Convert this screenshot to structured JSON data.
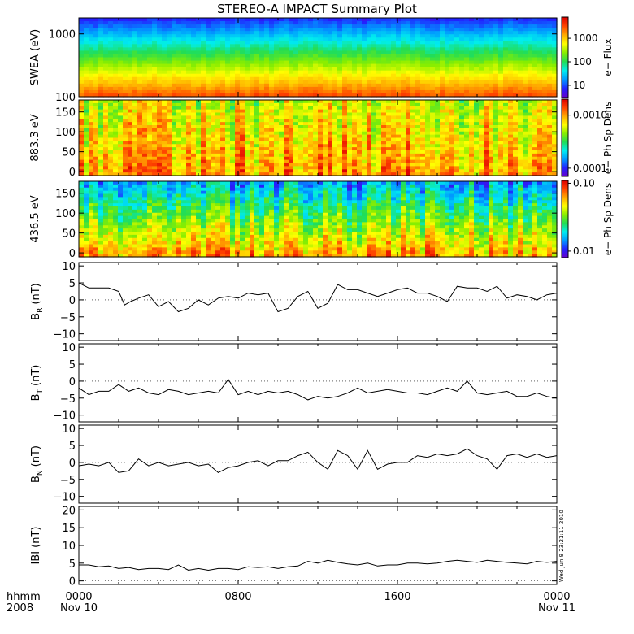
{
  "title": "STEREO-A IMPACT Summary Plot",
  "stamp": "Wed Jun  9 23:21:11 2010",
  "x_axis": {
    "label_line1": "hhmm",
    "label_line2": "2008",
    "range_hours": [
      0,
      24
    ],
    "ticks": [
      {
        "hour": 0,
        "line1": "0000",
        "line2": "Nov 10"
      },
      {
        "hour": 8,
        "line1": "0800",
        "line2": ""
      },
      {
        "hour": 16,
        "line1": "1600",
        "line2": ""
      },
      {
        "hour": 24,
        "line1": "0000",
        "line2": "Nov 11"
      }
    ]
  },
  "colors": {
    "colorbar": [
      "#6600cc",
      "#2222ff",
      "#0099ff",
      "#00eeee",
      "#22dd55",
      "#88ee00",
      "#ffff00",
      "#ffaa00",
      "#ff4400",
      "#dd0000"
    ],
    "line": "#000000"
  },
  "chart_data": [
    {
      "type": "heatmap",
      "ylabel": "SWEA (eV)",
      "yscale": "log",
      "ylim": [
        100,
        1800
      ],
      "yticks": [
        "100",
        "1000"
      ],
      "ytick_values": [
        100,
        1000
      ],
      "colorbar": {
        "label": "e− Flux",
        "scale": "log",
        "ticks": [
          "10",
          "100",
          "1000"
        ],
        "tick_values": [
          10,
          100,
          1000
        ],
        "range": [
          3,
          8000
        ]
      }
    },
    {
      "type": "heatmap",
      "ylabel": "883.3 eV",
      "ylim": [
        -10,
        180
      ],
      "yticks": [
        "0",
        "50",
        "100",
        "150"
      ],
      "ytick_values": [
        0,
        50,
        100,
        150
      ],
      "colorbar": {
        "label": "e− Ph Sp Dens",
        "scale": "log",
        "ticks": [
          "0.0001",
          "0.0010"
        ],
        "tick_values": [
          0.0001,
          0.001
        ],
        "range": [
          7e-05,
          0.002
        ]
      }
    },
    {
      "type": "heatmap",
      "ylabel": "436.5 eV",
      "ylim": [
        -10,
        180
      ],
      "yticks": [
        "0",
        "50",
        "100",
        "150"
      ],
      "ytick_values": [
        0,
        50,
        100,
        150
      ],
      "colorbar": {
        "label": "e− Ph Sp Dens",
        "scale": "log",
        "ticks": [
          "0.01",
          "0.10"
        ],
        "tick_values": [
          0.01,
          0.1
        ],
        "range": [
          0.008,
          0.11
        ]
      }
    },
    {
      "type": "line",
      "ylabel": "B",
      "ylabel_sub": "R",
      "ylabel_unit": "(nT)",
      "ylim": [
        -12,
        11
      ],
      "yticks": [
        "−10",
        "−5",
        "0",
        "5",
        "10"
      ],
      "ytick_values": [
        -10,
        -5,
        0,
        5,
        10
      ],
      "x": [
        0,
        0.5,
        1,
        1.5,
        2,
        2.3,
        2.6,
        3,
        3.5,
        4,
        4.5,
        5,
        5.5,
        6,
        6.5,
        7,
        7.5,
        8,
        8.5,
        9,
        9.5,
        10,
        10.5,
        11,
        11.5,
        12,
        12.5,
        13,
        13.5,
        14,
        14.5,
        15,
        15.5,
        16,
        16.5,
        17,
        17.5,
        18,
        18.5,
        19,
        19.5,
        20,
        20.5,
        21,
        21.5,
        22,
        22.5,
        23,
        23.5,
        24
      ],
      "y": [
        5,
        3.5,
        3.5,
        3.5,
        2.5,
        -1.5,
        -0.5,
        0.5,
        1.5,
        -2,
        -0.5,
        -3.5,
        -2.5,
        0,
        -1.5,
        0.5,
        1,
        0.5,
        2,
        1.5,
        2,
        -3.5,
        -2.5,
        1,
        2.5,
        -2.5,
        -1,
        4.5,
        3,
        3,
        2,
        1,
        2,
        3,
        3.5,
        2,
        2,
        1,
        -0.5,
        4,
        3.5,
        3.5,
        2.5,
        4,
        0.5,
        1.5,
        1,
        0,
        1.5,
        2
      ]
    },
    {
      "type": "line",
      "ylabel": "B",
      "ylabel_sub": "T",
      "ylabel_unit": "(nT)",
      "ylim": [
        -12,
        11
      ],
      "yticks": [
        "−10",
        "−5",
        "0",
        "5",
        "10"
      ],
      "ytick_values": [
        -10,
        -5,
        0,
        5,
        10
      ],
      "x": [
        0,
        0.5,
        1,
        1.5,
        2,
        2.5,
        3,
        3.5,
        4,
        4.5,
        5,
        5.5,
        6,
        6.5,
        7,
        7.5,
        8,
        8.5,
        9,
        9.5,
        10,
        10.5,
        11,
        11.5,
        12,
        12.5,
        13,
        13.5,
        14,
        14.5,
        15,
        15.5,
        16,
        16.5,
        17,
        17.5,
        18,
        18.5,
        19,
        19.5,
        20,
        20.5,
        21,
        21.5,
        22,
        22.5,
        23,
        23.5,
        24
      ],
      "y": [
        -2,
        -4,
        -3,
        -3,
        -1,
        -3,
        -2,
        -3.5,
        -4,
        -2.5,
        -3,
        -4,
        -3.5,
        -3,
        -3.5,
        0.5,
        -4,
        -3,
        -4,
        -3,
        -3.5,
        -3,
        -4,
        -5.5,
        -4.5,
        -5,
        -4.5,
        -3.5,
        -2,
        -3.5,
        -3,
        -2.5,
        -3,
        -3.5,
        -3.5,
        -4,
        -3,
        -2,
        -3,
        0,
        -3.5,
        -4,
        -3.5,
        -3,
        -4.5,
        -4.5,
        -3.5,
        -4.5,
        -5
      ]
    },
    {
      "type": "line",
      "ylabel": "B",
      "ylabel_sub": "N",
      "ylabel_unit": "(nT)",
      "ylim": [
        -12,
        11
      ],
      "yticks": [
        "−10",
        "−5",
        "0",
        "5",
        "10"
      ],
      "ytick_values": [
        -10,
        -5,
        0,
        5,
        10
      ],
      "x": [
        0,
        0.5,
        1,
        1.5,
        2,
        2.5,
        3,
        3.5,
        4,
        4.5,
        5,
        5.5,
        6,
        6.5,
        7,
        7.5,
        8,
        8.5,
        9,
        9.5,
        10,
        10.5,
        11,
        11.5,
        12,
        12.5,
        13,
        13.5,
        14,
        14.5,
        15,
        15.5,
        16,
        16.5,
        17,
        17.5,
        18,
        18.5,
        19,
        19.5,
        20,
        20.5,
        21,
        21.5,
        22,
        22.5,
        23,
        23.5,
        24
      ],
      "y": [
        -1,
        -0.5,
        -1,
        0,
        -3,
        -2.5,
        1,
        -1,
        0,
        -1,
        -0.5,
        0,
        -1,
        -0.5,
        -3,
        -1.5,
        -1,
        0,
        0.5,
        -1,
        0.5,
        0.5,
        2,
        3,
        0,
        -2,
        3.5,
        2,
        -2,
        3.5,
        -2,
        -0.5,
        0,
        0,
        2,
        1.5,
        2.5,
        2,
        2.5,
        4,
        2,
        1,
        -2,
        2,
        2.5,
        1.5,
        2.5,
        1.5,
        2
      ]
    },
    {
      "type": "line",
      "ylabel": "IBI",
      "ylabel_sub": "",
      "ylabel_unit": "(nT)",
      "ylim": [
        -1,
        21
      ],
      "yticks": [
        "0",
        "5",
        "10",
        "15",
        "20"
      ],
      "ytick_values": [
        0,
        5,
        10,
        15,
        20
      ],
      "x": [
        0,
        0.5,
        1,
        1.5,
        2,
        2.5,
        3,
        3.5,
        4,
        4.5,
        5,
        5.5,
        6,
        6.5,
        7,
        7.5,
        8,
        8.5,
        9,
        9.5,
        10,
        10.5,
        11,
        11.5,
        12,
        12.5,
        13,
        13.5,
        14,
        14.5,
        15,
        15.5,
        16,
        16.5,
        17,
        17.5,
        18,
        18.5,
        19,
        19.5,
        20,
        20.5,
        21,
        21.5,
        22,
        22.5,
        23,
        23.5,
        24
      ],
      "y": [
        4.5,
        4.5,
        4,
        4.2,
        3.5,
        3.8,
        3.2,
        3.5,
        3.5,
        3.2,
        4.5,
        3,
        3.5,
        3,
        3.5,
        3.5,
        3.2,
        4,
        3.8,
        4,
        3.5,
        4,
        4.2,
        5.5,
        5,
        5.8,
        5.2,
        4.8,
        4.5,
        5,
        4.2,
        4.5,
        4.5,
        5,
        5,
        4.8,
        5,
        5.5,
        5.8,
        5.5,
        5.2,
        5.8,
        5.5,
        5.2,
        5,
        4.8,
        5.5,
        5.2,
        5.5
      ]
    }
  ]
}
